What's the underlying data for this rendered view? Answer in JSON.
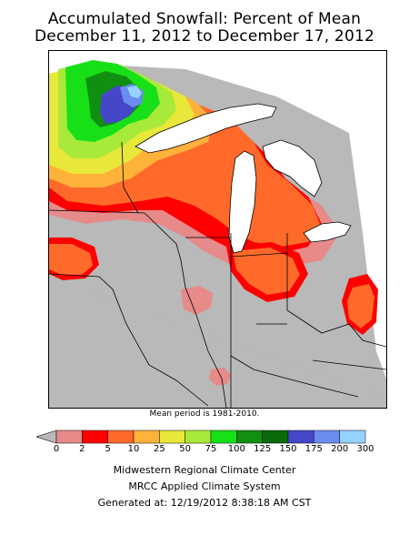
{
  "title_line1": "Accumulated Snowfall: Percent of Mean",
  "title_line2": "December 11, 2012 to December 17, 2012",
  "mean_period": "Mean period is 1981-2010.",
  "legend": {
    "colors": [
      "#b9b9b9",
      "#e68a8a",
      "#ff0000",
      "#ff6a2a",
      "#ffb23a",
      "#e8e83a",
      "#a8ea3a",
      "#18e018",
      "#109010",
      "#0a6a0a",
      "#4646c8",
      "#6a8cf0",
      "#96d2ff"
    ],
    "ticks": [
      "0",
      "2",
      "5",
      "10",
      "25",
      "50",
      "75",
      "100",
      "125",
      "150",
      "175",
      "200",
      "300"
    ]
  },
  "credits": {
    "line1": "Midwestern Regional Climate Center",
    "line2": "MRCC Applied Climate System",
    "line3": "Generated at: 12/19/2012 8:38:18 AM CST"
  }
}
